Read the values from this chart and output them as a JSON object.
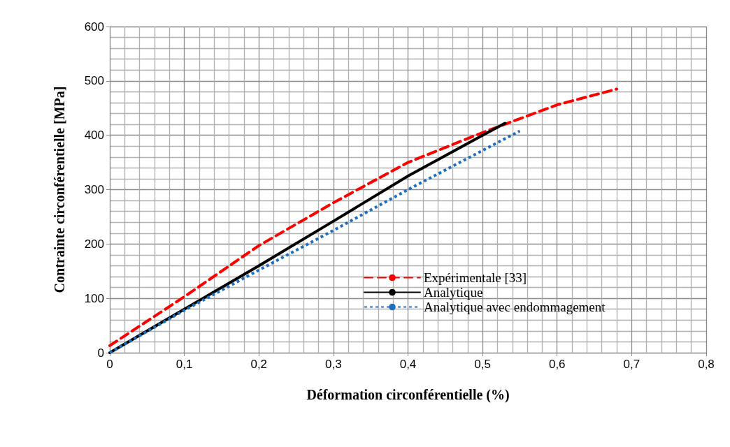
{
  "chart_data": {
    "type": "line",
    "xlabel": "Déformation circonférentielle (%)",
    "ylabel": "Contrainte circonférentielle [MPa]",
    "xlim": [
      0,
      0.8
    ],
    "xticks": [
      {
        "value": 0,
        "label": "0"
      },
      {
        "value": 0.1,
        "label": "0,1"
      },
      {
        "value": 0.2,
        "label": "0,2"
      },
      {
        "value": 0.3,
        "label": "0,3"
      },
      {
        "value": 0.4,
        "label": "0,4"
      },
      {
        "value": 0.5,
        "label": "0,5"
      },
      {
        "value": 0.6,
        "label": "0,6"
      },
      {
        "value": 0.7,
        "label": "0,7"
      },
      {
        "value": 0.8,
        "label": "0,8"
      }
    ],
    "ylim": [
      0,
      600
    ],
    "yticks": [
      0,
      100,
      200,
      300,
      400,
      500,
      600
    ],
    "grid": true,
    "legend": "right",
    "marker": "none",
    "series": [
      {
        "name": "Expérimentale [33]",
        "color": "#ff0000",
        "line_style": "dashed",
        "x": [
          0,
          0.1,
          0.2,
          0.3,
          0.4,
          0.5,
          0.6,
          0.68
        ],
        "values": [
          13,
          103,
          197,
          276,
          350,
          405,
          456,
          485
        ]
      },
      {
        "name": "Analytique",
        "color": "#000000",
        "line_style": "solid",
        "x": [
          0,
          0.1,
          0.2,
          0.3,
          0.4,
          0.5,
          0.53
        ],
        "values": [
          0,
          80,
          160,
          242,
          325,
          400,
          422
        ]
      },
      {
        "name": "Analytique avec endommagement",
        "color": "#1f6fbf",
        "line_style": "dotted",
        "x": [
          0,
          0.1,
          0.2,
          0.3,
          0.4,
          0.5,
          0.55
        ],
        "values": [
          0,
          78,
          152,
          225,
          300,
          372,
          408
        ]
      }
    ]
  }
}
